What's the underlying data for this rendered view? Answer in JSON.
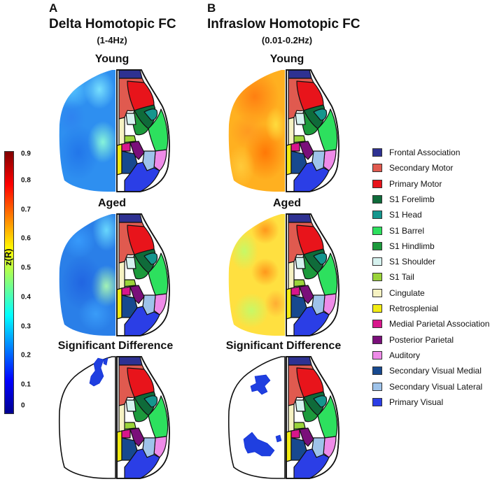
{
  "panels": [
    {
      "letter": "A",
      "title": "Delta Homotopic FC",
      "subtitle": "(1-4Hz)"
    },
    {
      "letter": "B",
      "title": "Infraslow Homotopic FC",
      "subtitle": "(0.01-0.2Hz)"
    }
  ],
  "rows": [
    "Young",
    "Aged",
    "Significant Difference"
  ],
  "colorbar": {
    "title": "z(R)",
    "min": 0,
    "max": 0.9,
    "ticks": [
      "0.9",
      "0.8",
      "0.7",
      "0.6",
      "0.5",
      "0.4",
      "0.3",
      "0.2",
      "0.1",
      "0"
    ],
    "colors": [
      "#00008f",
      "#0000ff",
      "#0080ff",
      "#00ffff",
      "#80ff80",
      "#ffff00",
      "#ff8000",
      "#ff0000",
      "#800000"
    ]
  },
  "legend": [
    {
      "label": "Frontal Association",
      "color": "#2e3192"
    },
    {
      "label": "Secondary Motor",
      "color": "#e05a4f"
    },
    {
      "label": "Primary Motor",
      "color": "#e8141b"
    },
    {
      "label": "S1 Forelimb",
      "color": "#0f6b3a"
    },
    {
      "label": "S1 Head",
      "color": "#15968e"
    },
    {
      "label": "S1 Barrel",
      "color": "#2de05e"
    },
    {
      "label": "S1 Hindlimb",
      "color": "#1c9a3c"
    },
    {
      "label": "S1 Shoulder",
      "color": "#d6f2ef"
    },
    {
      "label": "S1 Tail",
      "color": "#9ad43a"
    },
    {
      "label": "Cingulate",
      "color": "#f6f2c2"
    },
    {
      "label": "Retrosplenial",
      "color": "#f2ec13"
    },
    {
      "label": "Medial Parietal Association",
      "color": "#d8168c"
    },
    {
      "label": "Posterior Parietal",
      "color": "#7a0f7a"
    },
    {
      "label": "Auditory",
      "color": "#ee8be8"
    },
    {
      "label": "Secondary Visual Medial",
      "color": "#17498f"
    },
    {
      "label": "Secondary Visual Lateral",
      "color": "#9ec3ea"
    },
    {
      "label": "Primary Visual",
      "color": "#2b3ee6"
    }
  ],
  "maps": {
    "delta_young": "blue-cyan",
    "delta_aged": "blue-cyan",
    "infraslow_young": "orange-yellow",
    "infraslow_aged": "yellow-orange",
    "delta_diff": "sparse-blue",
    "infraslow_diff": "sparse-blue"
  }
}
